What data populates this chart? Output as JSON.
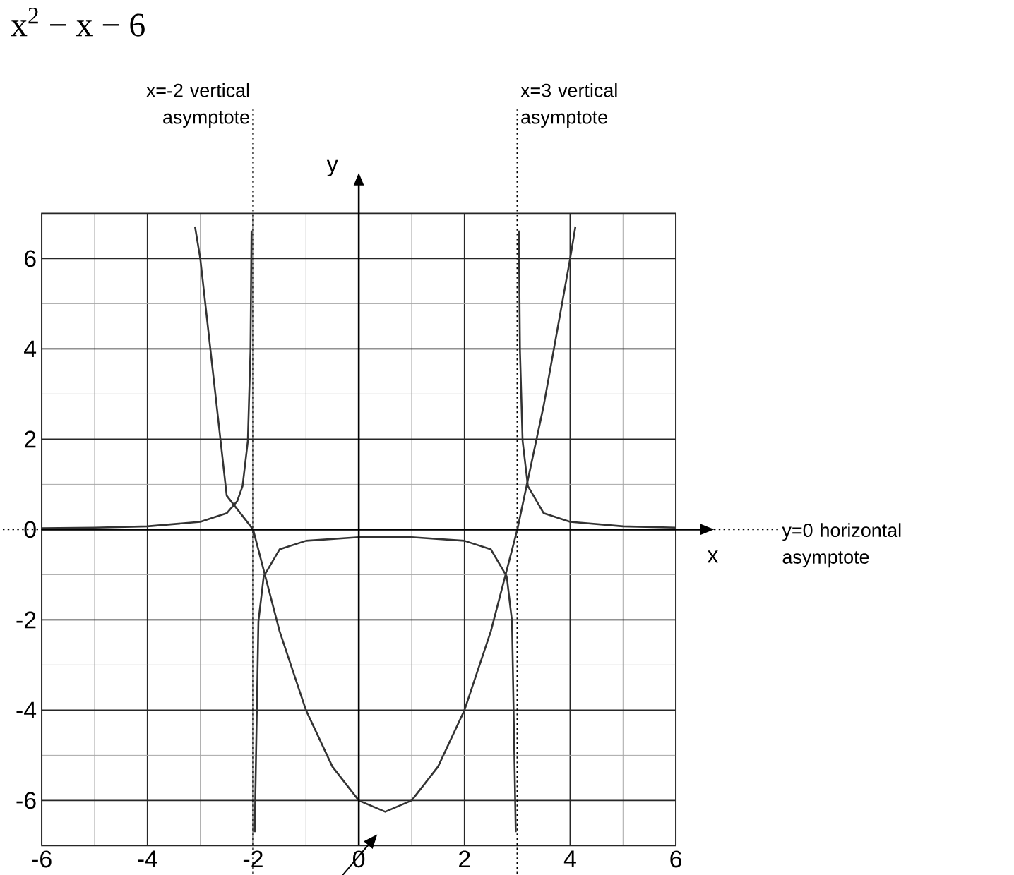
{
  "chart_data": {
    "type": "line",
    "title": "x$^{2}$ − x − 6",
    "xlabel": "x",
    "ylabel": "y",
    "xlim": [
      -6,
      6
    ],
    "ylim": [
      -7,
      7
    ],
    "xticks": [
      -6,
      -4,
      -2,
      0,
      2,
      4,
      6
    ],
    "yticks": [
      -6,
      -4,
      -2,
      0,
      2,
      4,
      6
    ],
    "grid": true,
    "marker": "none",
    "line_style": "solid",
    "series": [
      {
        "color": "#333333",
        "x": [
          -3.1,
          -3,
          -2.5,
          -2,
          -1.5,
          -1,
          -0.5,
          0,
          0.5,
          1,
          1.5,
          2,
          2.5,
          3,
          3.5,
          4,
          4.1
        ],
        "values": [
          6.71,
          6,
          0.75,
          0,
          -2.25,
          -4,
          -5.25,
          -6,
          -6.25,
          -6,
          -5.25,
          -4,
          -2.25,
          0,
          2.75,
          6,
          6.71
        ]
      },
      {
        "color": "#333333",
        "x": [
          -6,
          -5,
          -4,
          -3,
          -2.5,
          -2.3,
          -2.2,
          -2.1,
          -2.05,
          -2.03
        ],
        "values": [
          0.03,
          0.04,
          0.07,
          0.17,
          0.36,
          0.63,
          0.96,
          1.96,
          3.95,
          6.62
        ]
      },
      {
        "color": "#333333",
        "x": [
          -1.97,
          -1.9,
          -1.8,
          -1.5,
          -1,
          0,
          0.5,
          1,
          2,
          2.5,
          2.8,
          2.9,
          2.97
        ],
        "values": [
          -6.7,
          -2.04,
          -1.04,
          -0.44,
          -0.25,
          -0.17,
          -0.16,
          -0.17,
          -0.25,
          -0.44,
          -1.04,
          -2.04,
          -6.7
        ]
      },
      {
        "color": "#333333",
        "x": [
          3.03,
          3.05,
          3.1,
          3.2,
          3.5,
          4,
          5,
          6
        ],
        "values": [
          6.62,
          3.96,
          1.96,
          0.96,
          0.36,
          0.17,
          0.07,
          0.04
        ]
      }
    ],
    "ref_lines": [
      {
        "axis": "x",
        "value": -2,
        "label": "x=-2 vertical asymptote",
        "line_style": "dotted"
      },
      {
        "axis": "x",
        "value": 3,
        "label": "x=3 vertical asymptote",
        "line_style": "dotted"
      },
      {
        "axis": "y",
        "value": 0,
        "label": "y=0 horizontal asymptote",
        "line_style": "dotted"
      }
    ]
  }
}
